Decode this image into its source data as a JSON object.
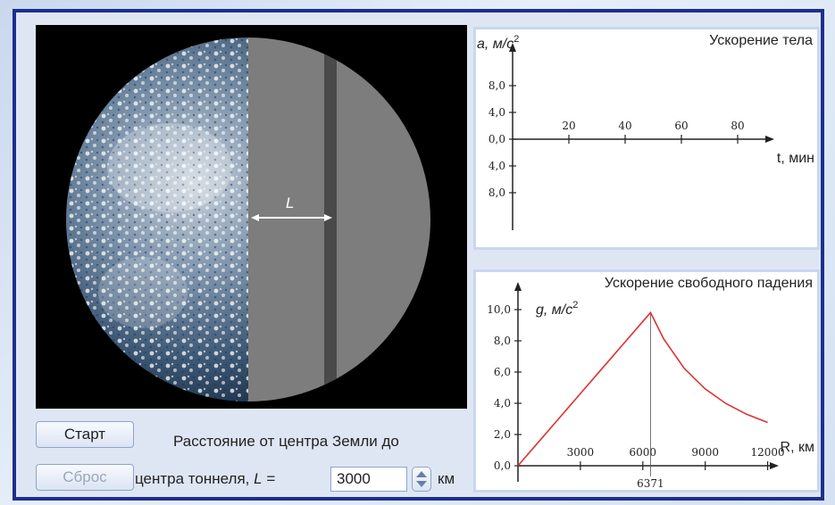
{
  "earth": {
    "tunnel_label": "L"
  },
  "chart_top": {
    "title": "Ускорение тела",
    "y_axis_label": "a, м/с",
    "y_axis_exp": "2",
    "x_axis_label": "t, мин",
    "y_ticks": [
      "8,0",
      "4,0",
      "0,0",
      "4,0",
      "8,0"
    ],
    "x_ticks": [
      "20",
      "40",
      "60",
      "80"
    ]
  },
  "chart_bottom": {
    "title": "Ускорение свободного падения",
    "y_axis_label": "g, м/с",
    "y_axis_exp": "2",
    "x_axis_label": "R, км",
    "y_ticks": [
      "10,0",
      "8,0",
      "6,0",
      "4,0",
      "2,0",
      "0,0"
    ],
    "x_ticks": [
      "3000",
      "6000",
      "9000",
      "12000"
    ],
    "marker_label": "6371",
    "line_color": "#e03030"
  },
  "chart_data": [
    {
      "type": "line",
      "title": "Ускорение тела",
      "ylabel": "a, м/с2",
      "xlabel": "t, мин",
      "x_ticks": [
        20,
        40,
        60,
        80
      ],
      "y_ticks": [
        8.0,
        4.0,
        0.0,
        -4.0,
        -8.0
      ],
      "series": []
    },
    {
      "type": "line",
      "title": "Ускорение свободного падения",
      "ylabel": "g, м/с2",
      "xlabel": "R, км",
      "ylim": [
        0,
        10
      ],
      "xlim": [
        0,
        12000
      ],
      "x_ticks": [
        3000,
        6000,
        9000,
        12000
      ],
      "y_ticks": [
        0.0,
        2.0,
        4.0,
        6.0,
        8.0,
        10.0
      ],
      "marker_x": 6371,
      "series": [
        {
          "x": [
            0,
            1000,
            2000,
            3000,
            4000,
            5000,
            6000,
            6371,
            7000,
            8000,
            9000,
            10000,
            11000,
            12000
          ],
          "y": [
            0,
            1.54,
            3.08,
            4.62,
            6.16,
            7.7,
            9.24,
            9.81,
            8.13,
            6.22,
            4.92,
            3.98,
            3.29,
            2.77
          ]
        }
      ]
    }
  ],
  "controls": {
    "start_label": "Старт",
    "reset_label": "Сброс",
    "distance_line1": "Расстояние от центра Земли до",
    "distance_line2": "центра тоннеля,",
    "distance_var": "L",
    "distance_eq": "=",
    "distance_value": "3000",
    "distance_unit": "км"
  }
}
